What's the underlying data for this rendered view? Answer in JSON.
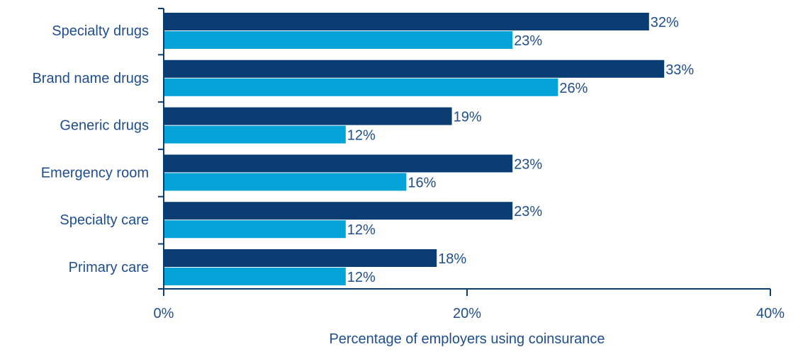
{
  "chart_data": {
    "type": "bar",
    "orientation": "horizontal",
    "categories": [
      "Specialty drugs",
      "Brand name drugs",
      "Generic drugs",
      "Emergency room",
      "Specialty care",
      "Primary care"
    ],
    "series": [
      {
        "color": "#0b3d75",
        "values": [
          32,
          33,
          19,
          23,
          23,
          18
        ]
      },
      {
        "color": "#06a3d9",
        "values": [
          23,
          26,
          12,
          16,
          12,
          12
        ]
      }
    ],
    "value_labels": [
      [
        "32%",
        "33%",
        "19%",
        "23%",
        "23%",
        "18%"
      ],
      [
        "23%",
        "26%",
        "12%",
        "16%",
        "12%",
        "12%"
      ]
    ],
    "xlim": [
      0,
      40
    ],
    "xticks": [
      0,
      20,
      40
    ],
    "xtick_labels": [
      "0%",
      "20%",
      "40%"
    ],
    "xlabel": "Percentage of employers using coinsurance",
    "ylabel": "",
    "title": "",
    "grid": false,
    "legend": "none",
    "label_color": "#1f4e8c",
    "axis_color": "#0b3d75"
  }
}
